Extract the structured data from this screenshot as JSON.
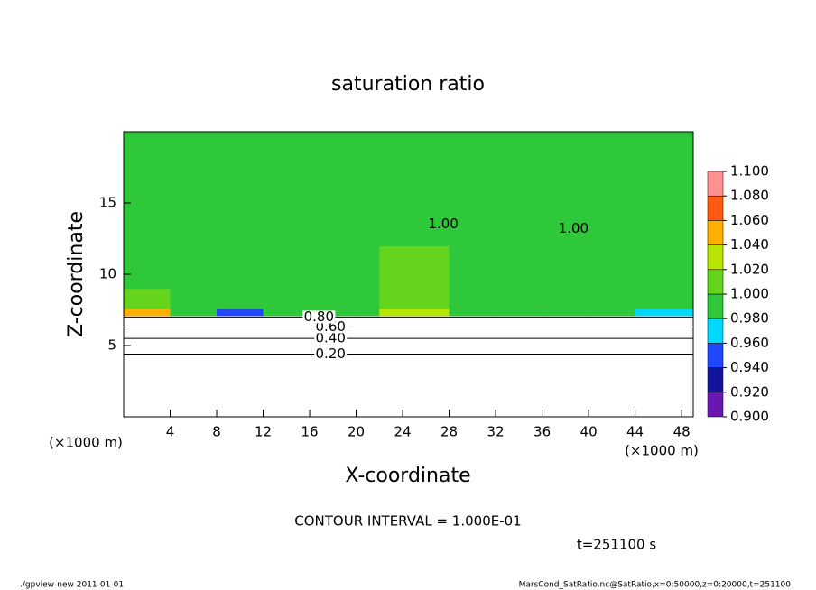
{
  "chart_data": {
    "type": "contour",
    "title": "saturation ratio",
    "xlabel": "X-coordinate",
    "ylabel": "Z-coordinate",
    "xunit": "(×1000 m)",
    "yunit": "(×1000 m)",
    "xlim": [
      0,
      49
    ],
    "ylim": [
      0,
      20
    ],
    "xticks": [
      4,
      8,
      12,
      16,
      20,
      24,
      28,
      32,
      36,
      40,
      44,
      48
    ],
    "yticks": [
      5,
      10,
      15
    ],
    "field": {
      "x_edges": [
        0,
        4,
        8,
        12,
        16,
        20,
        22,
        28,
        32,
        36,
        40,
        44,
        49
      ],
      "z_edges": [
        0,
        7.1,
        7.6,
        9,
        12,
        20
      ],
      "values": [
        [
          0.7,
          0.7,
          0.7,
          0.7,
          0.7,
          0.7,
          0.7,
          0.7,
          0.7,
          0.7,
          0.7,
          0.7
        ],
        [
          1.05,
          0.99,
          0.95,
          0.99,
          0.99,
          0.99,
          1.03,
          0.99,
          0.99,
          0.99,
          0.99,
          0.97
        ],
        [
          1.01,
          0.99,
          0.99,
          0.99,
          0.99,
          0.99,
          1.01,
          0.99,
          0.99,
          0.99,
          0.99,
          0.99
        ],
        [
          0.99,
          0.99,
          0.99,
          0.99,
          0.99,
          0.99,
          1.01,
          0.99,
          0.99,
          0.99,
          0.99,
          0.99
        ],
        [
          0.99,
          0.99,
          0.99,
          0.99,
          0.99,
          0.99,
          0.99,
          0.99,
          0.99,
          0.99,
          0.99,
          0.99
        ]
      ]
    },
    "contours": [
      {
        "value": 0.2,
        "label": "0.20",
        "height": 4.4,
        "x": 17.8
      },
      {
        "value": 0.4,
        "label": "0.40",
        "height": 5.5,
        "x": 17.8
      },
      {
        "value": 0.6,
        "label": "0.60",
        "height": 6.3,
        "x": 17.8
      },
      {
        "value": 0.8,
        "label": "0.80",
        "height": 7.0,
        "x": 16.8
      },
      {
        "value": 1.0,
        "label": "1.00",
        "height": 13.5,
        "x": 27.5
      },
      {
        "value": 1.0,
        "label": "1.00",
        "height": 13.2,
        "x": 38.7
      }
    ],
    "colorbar": {
      "ticks": [
        {
          "value": 0.9,
          "label": "0.900"
        },
        {
          "value": 0.92,
          "label": "0.920"
        },
        {
          "value": 0.94,
          "label": "0.940"
        },
        {
          "value": 0.96,
          "label": "0.960"
        },
        {
          "value": 0.98,
          "label": "0.980"
        },
        {
          "value": 1.0,
          "label": "1.000"
        },
        {
          "value": 1.02,
          "label": "1.020"
        },
        {
          "value": 1.04,
          "label": "1.040"
        },
        {
          "value": 1.06,
          "label": "1.060"
        },
        {
          "value": 1.08,
          "label": "1.080"
        },
        {
          "value": 1.1,
          "label": "1.100"
        }
      ],
      "colors": [
        "#6a16b0",
        "#14149a",
        "#1f48ff",
        "#00d8ff",
        "#2ec83a",
        "#64d41c",
        "#b8e400",
        "#ffb000",
        "#ff5a10",
        "#ff9090"
      ]
    },
    "contour_interval": "CONTOUR INTERVAL = 1.000E-01",
    "time": "t=251100 s",
    "footer_left": "./gpview-new   2011-01-01",
    "footer_right": "MarsCond_SatRatio.nc@SatRatio,x=0:50000,z=0:20000,t=251100"
  }
}
